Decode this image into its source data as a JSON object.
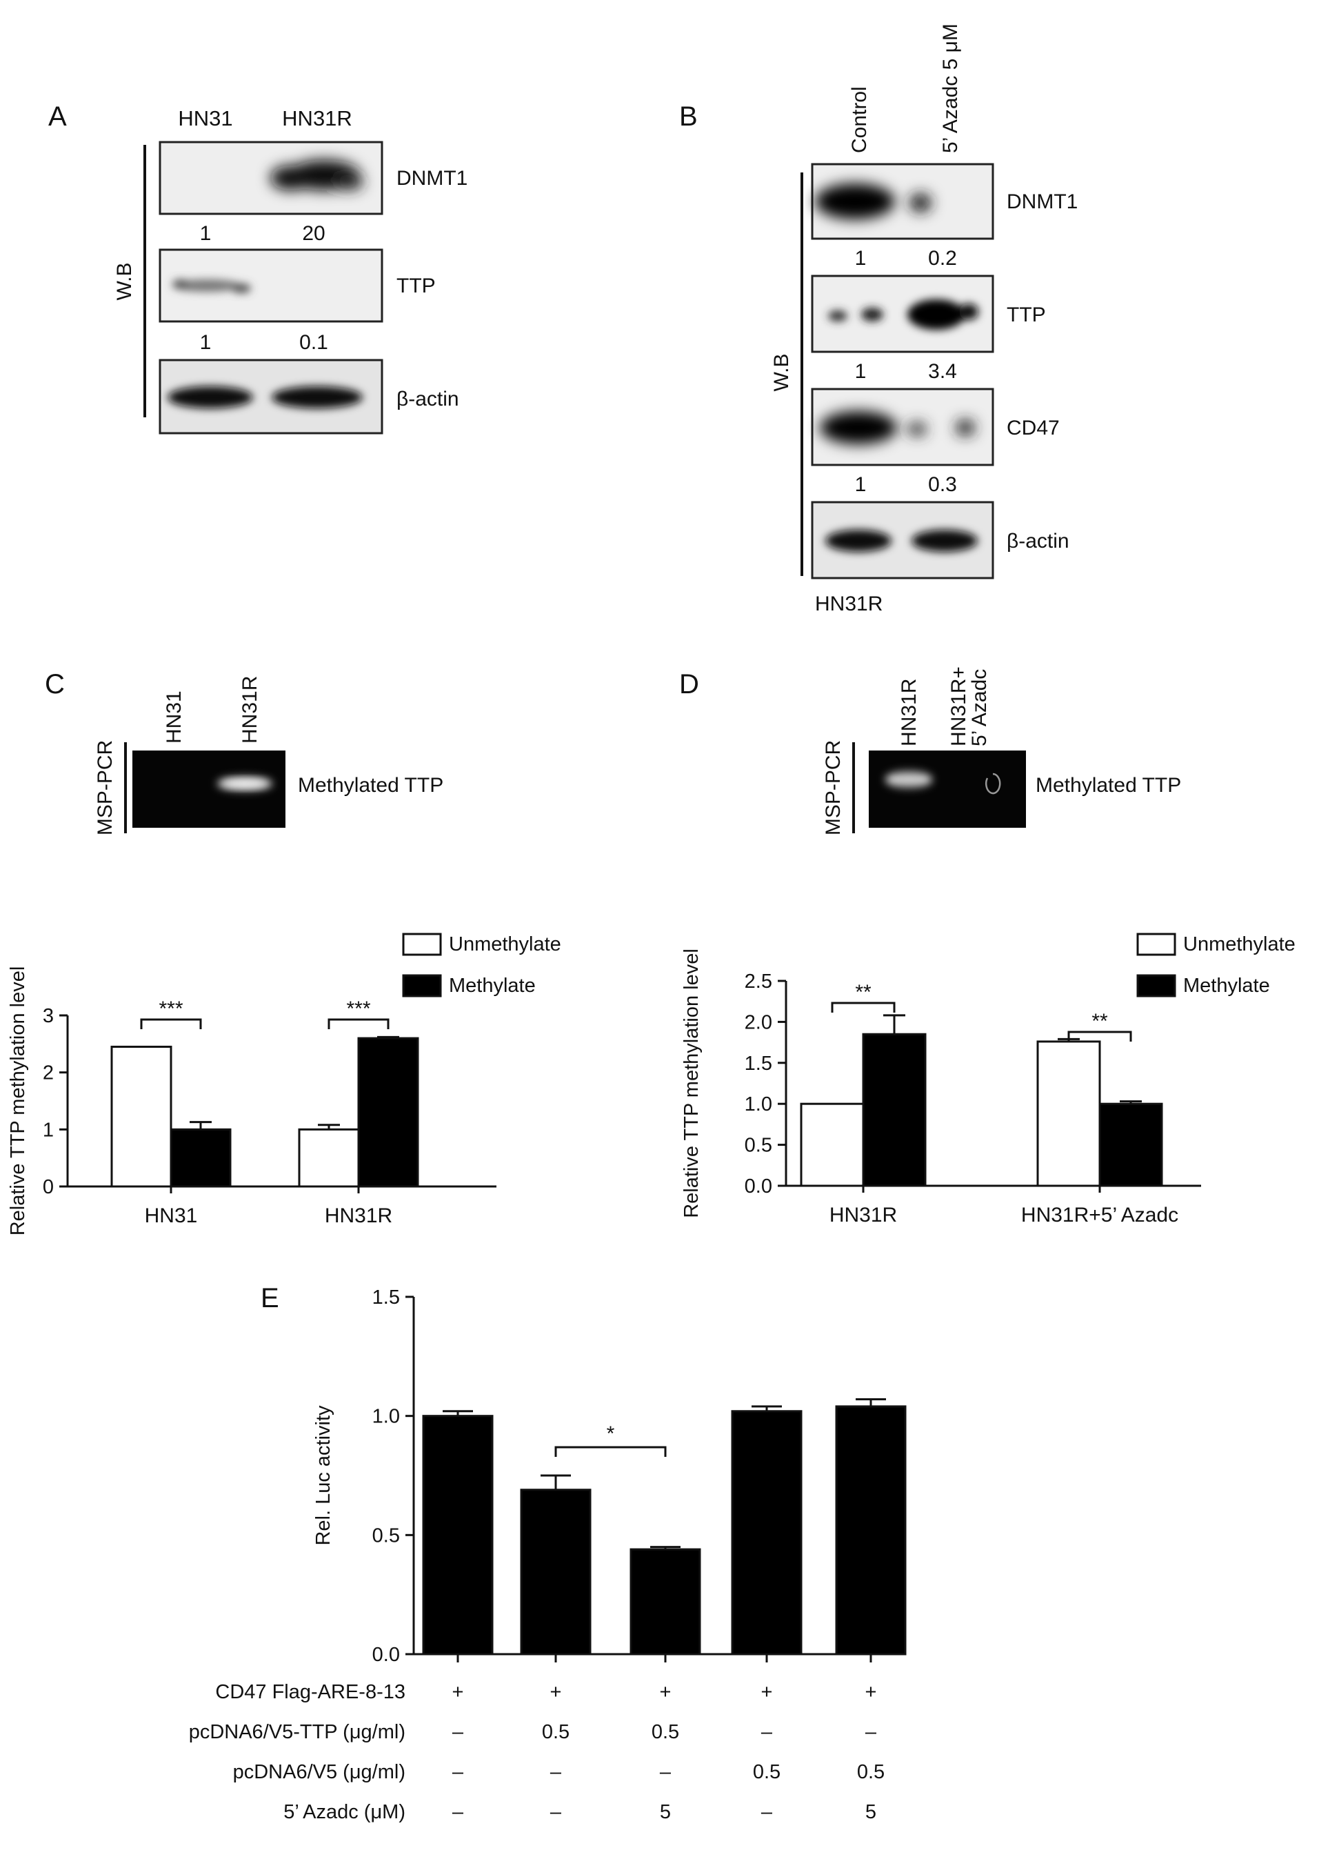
{
  "panels": {
    "A": {
      "letter": "A",
      "lanes": [
        "HN31",
        "HN31R"
      ],
      "wb_label": "W.B",
      "blots": [
        {
          "label": "DNMT1",
          "quant": [
            "1",
            "20"
          ]
        },
        {
          "label": "TTP",
          "quant": [
            "1",
            "0.1"
          ]
        },
        {
          "label": "β-actin",
          "quant": []
        }
      ]
    },
    "B": {
      "letter": "B",
      "lanes": [
        "Control",
        "5’ Azadc 5 μM"
      ],
      "wb_label": "W.B",
      "cell_line": "HN31R",
      "blots": [
        {
          "label": "DNMT1",
          "quant": [
            "1",
            "0.2"
          ]
        },
        {
          "label": "TTP",
          "quant": [
            "1",
            "3.4"
          ]
        },
        {
          "label": "CD47",
          "quant": [
            "1",
            "0.3"
          ]
        },
        {
          "label": "β-actin",
          "quant": []
        }
      ]
    },
    "C": {
      "letter": "C",
      "gel_lanes": [
        "HN31",
        "HN31R"
      ],
      "gel_method": "MSP-PCR",
      "gel_band_label": "Methylated TTP"
    },
    "D": {
      "letter": "D",
      "gel_lanes": [
        "HN31R",
        "HN31R+",
        "5’ Azadc"
      ],
      "gel_method": "MSP-PCR",
      "gel_band_label": "Methylated TTP"
    },
    "E": {
      "letter": "E"
    }
  },
  "chart_data": [
    {
      "panel": "C",
      "type": "bar",
      "categories": [
        "HN31",
        "HN31R"
      ],
      "ylabel": "Relative TTP methylation level",
      "ylim": [
        0,
        3
      ],
      "yticks": [
        "0",
        "1",
        "2",
        "3"
      ],
      "legend": [
        "Unmethylate",
        "Methylate"
      ],
      "series": [
        {
          "name": "Unmethylate",
          "color": "#ffffff",
          "values": [
            2.45,
            1.0
          ],
          "errors": [
            0,
            0.08
          ]
        },
        {
          "name": "Methylate",
          "color": "#000000",
          "values": [
            1.0,
            2.6
          ],
          "errors": [
            0.13,
            0.02
          ]
        }
      ],
      "significance": [
        "***",
        "***"
      ]
    },
    {
      "panel": "D",
      "type": "bar",
      "categories": [
        "HN31R",
        "HN31R+5’ Azadc"
      ],
      "ylabel": "Relative TTP methylation level",
      "ylim": [
        0,
        2.5
      ],
      "yticks": [
        "0.0",
        "0.5",
        "1.0",
        "1.5",
        "2.0",
        "2.5"
      ],
      "legend": [
        "Unmethylate",
        "Methylate"
      ],
      "series": [
        {
          "name": "Unmethylate",
          "color": "#ffffff",
          "values": [
            1.0,
            1.76
          ],
          "errors": [
            0,
            0.03
          ]
        },
        {
          "name": "Methylate",
          "color": "#000000",
          "values": [
            1.85,
            1.0
          ],
          "errors": [
            0.23,
            0.03
          ]
        }
      ],
      "significance": [
        "**",
        "**"
      ]
    },
    {
      "panel": "E",
      "type": "bar",
      "ylabel": "Rel. Luc activity",
      "ylim": [
        0,
        1.5
      ],
      "yticks": [
        "0.0",
        "0.5",
        "1.0",
        "1.5"
      ],
      "values": [
        1.0,
        0.69,
        0.44,
        1.02,
        1.04
      ],
      "errors": [
        0.02,
        0.06,
        0.01,
        0.02,
        0.03
      ],
      "significance": "*",
      "conditions": [
        {
          "label": "CD47 Flag-ARE-8-13",
          "values": [
            "+",
            "+",
            "+",
            "+",
            "+"
          ]
        },
        {
          "label": "pcDNA6/V5-TTP (μg/ml)",
          "values": [
            "–",
            "0.5",
            "0.5",
            "–",
            "–"
          ]
        },
        {
          "label": "pcDNA6/V5 (μg/ml)",
          "values": [
            "–",
            "–",
            "–",
            "0.5",
            "0.5"
          ]
        },
        {
          "label": "5’ Azadc (μM)",
          "values": [
            "–",
            "–",
            "5",
            "–",
            "5"
          ]
        }
      ]
    }
  ]
}
